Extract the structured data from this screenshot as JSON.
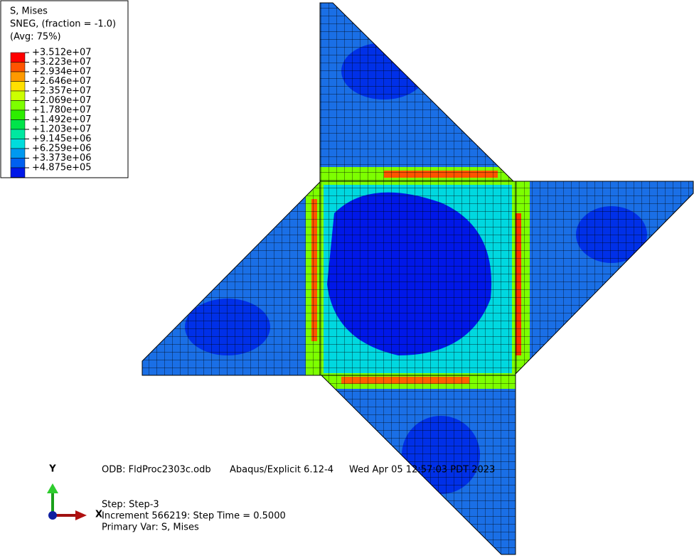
{
  "legend": {
    "title": [
      "S, Mises",
      "SNEG, (fraction = -1.0)",
      "(Avg: 75%)"
    ],
    "labels": [
      "+3.512e+07",
      "+3.223e+07",
      "+2.934e+07",
      "+2.646e+07",
      "+2.357e+07",
      "+2.069e+07",
      "+1.780e+07",
      "+1.492e+07",
      "+1.203e+07",
      "+9.145e+06",
      "+6.259e+06",
      "+3.373e+06",
      "+4.875e+05"
    ],
    "colors": [
      "#ff0000",
      "#ff5400",
      "#ff9900",
      "#ffe000",
      "#ccff00",
      "#7dff00",
      "#2dee00",
      "#00e44a",
      "#00e8a0",
      "#00dcdc",
      "#0099f0",
      "#0060f0",
      "#0018e8"
    ]
  },
  "info": {
    "odb": "ODB: FldProc2303c.odb",
    "solver": "Abaqus/Explicit 6.12-4",
    "date": "Wed Apr 05 12:57:03 PDT 2023",
    "step": "Step: Step-3",
    "increment": "Increment    566219: Step Time =    0.5000",
    "primary_var": "Primary Var: S, Mises"
  },
  "triad": {
    "y": "Y",
    "x": "X"
  }
}
